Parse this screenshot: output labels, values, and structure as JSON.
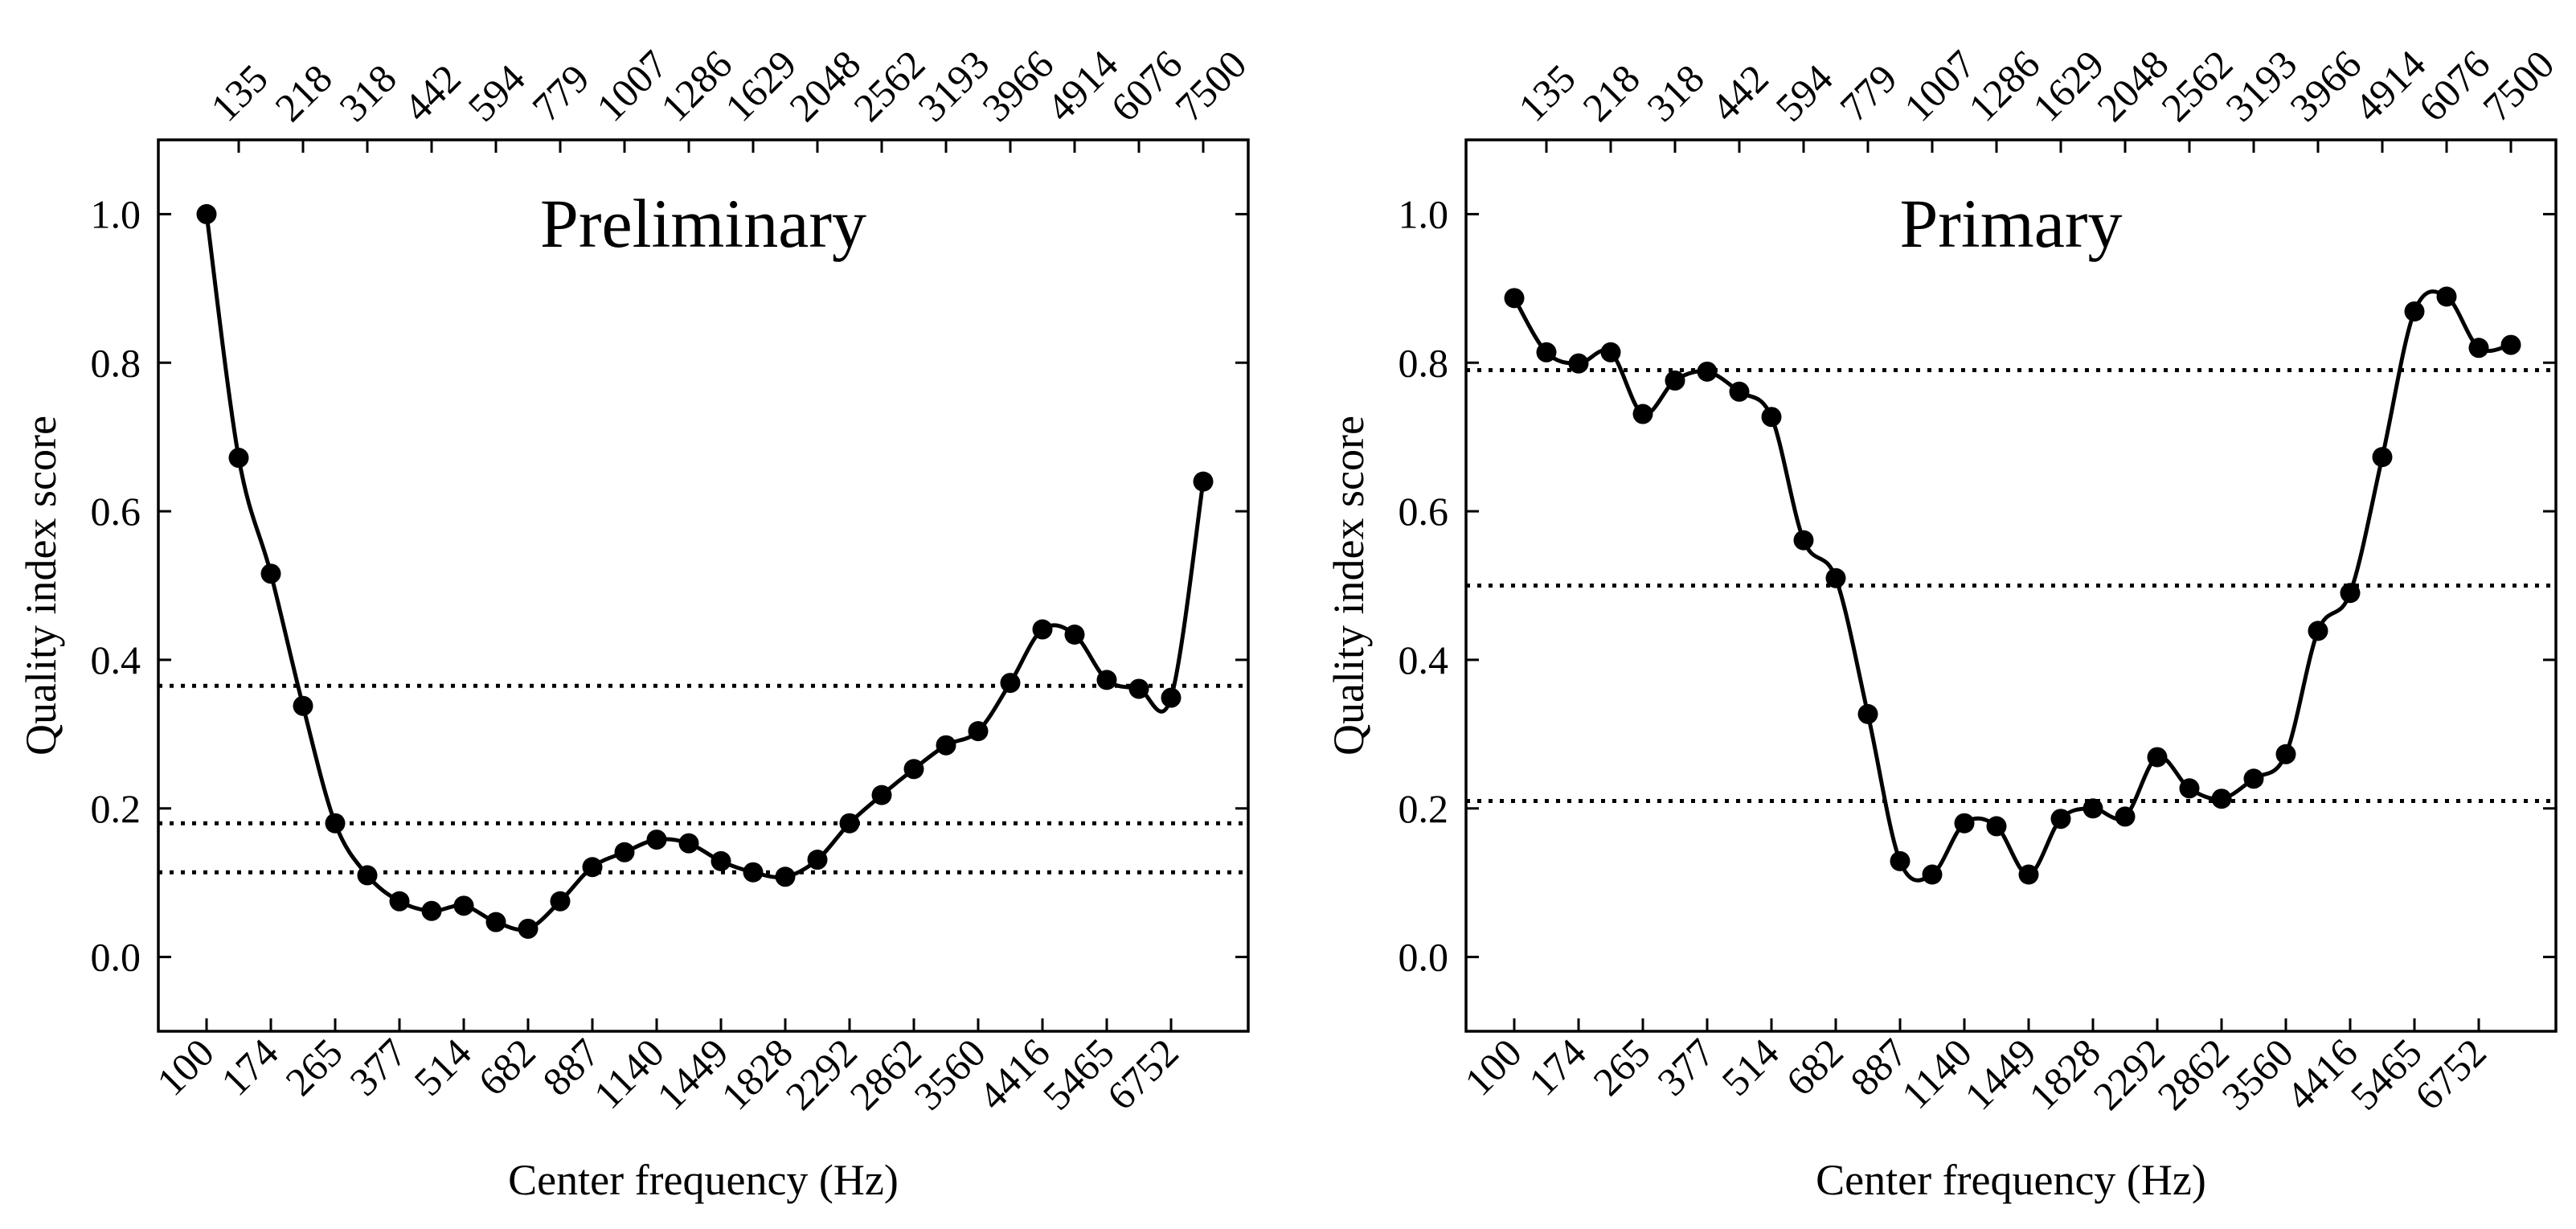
{
  "chart_data": [
    {
      "type": "line",
      "title": "Preliminary",
      "xlabel": "Center frequency (Hz)",
      "ylabel": "Quality index score",
      "ylim": [
        -0.1,
        1.1
      ],
      "yticks": [
        "0.0",
        "0.2",
        "0.4",
        "0.6",
        "0.8",
        "1.0"
      ],
      "yticks_values": [
        0.0,
        0.2,
        0.4,
        0.6,
        0.8,
        1.0
      ],
      "x_bottom_ticks": [
        "100",
        "174",
        "265",
        "377",
        "514",
        "682",
        "887",
        "1140",
        "1449",
        "1828",
        "2292",
        "2862",
        "3560",
        "4416",
        "5465",
        "6752"
      ],
      "x_top_ticks": [
        "135",
        "218",
        "318",
        "442",
        "594",
        "779",
        "1007",
        "1286",
        "1629",
        "2048",
        "2562",
        "3193",
        "3966",
        "4914",
        "6076",
        "7500"
      ],
      "x": [
        "100",
        "135",
        "174",
        "218",
        "265",
        "318",
        "377",
        "442",
        "514",
        "594",
        "682",
        "779",
        "887",
        "1007",
        "1140",
        "1286",
        "1449",
        "1629",
        "1828",
        "2048",
        "2292",
        "2562",
        "2862",
        "3193",
        "3560",
        "3966",
        "4416",
        "4914",
        "5465",
        "6076",
        "6752",
        "7500"
      ],
      "values": [
        1.0,
        0.672,
        0.516,
        0.338,
        0.18,
        0.11,
        0.075,
        0.062,
        0.069,
        0.047,
        0.038,
        0.075,
        0.121,
        0.141,
        0.158,
        0.153,
        0.129,
        0.114,
        0.108,
        0.131,
        0.18,
        0.218,
        0.253,
        0.285,
        0.304,
        0.369,
        0.441,
        0.434,
        0.373,
        0.361,
        0.349,
        0.64
      ],
      "hlines": [
        0.365,
        0.18,
        0.114
      ]
    },
    {
      "type": "line",
      "title": "Primary",
      "xlabel": "Center frequency (Hz)",
      "ylabel": "Quality index score",
      "ylim": [
        -0.1,
        1.1
      ],
      "yticks": [
        "0.0",
        "0.2",
        "0.4",
        "0.6",
        "0.8",
        "1.0"
      ],
      "yticks_values": [
        0.0,
        0.2,
        0.4,
        0.6,
        0.8,
        1.0
      ],
      "x_bottom_ticks": [
        "100",
        "174",
        "265",
        "377",
        "514",
        "682",
        "887",
        "1140",
        "1449",
        "1828",
        "2292",
        "2862",
        "3560",
        "4416",
        "5465",
        "6752"
      ],
      "x_top_ticks": [
        "135",
        "218",
        "318",
        "442",
        "594",
        "779",
        "1007",
        "1286",
        "1629",
        "2048",
        "2562",
        "3193",
        "3966",
        "4914",
        "6076",
        "7500"
      ],
      "x": [
        "100",
        "135",
        "174",
        "218",
        "265",
        "318",
        "377",
        "442",
        "514",
        "594",
        "682",
        "779",
        "887",
        "1007",
        "1140",
        "1286",
        "1449",
        "1629",
        "1828",
        "2048",
        "2292",
        "2562",
        "2862",
        "3193",
        "3560",
        "3966",
        "4416",
        "4914",
        "5465",
        "6076",
        "6752",
        "7500"
      ],
      "values": [
        0.887,
        0.814,
        0.799,
        0.814,
        0.731,
        0.776,
        0.788,
        0.761,
        0.727,
        0.561,
        0.51,
        0.327,
        0.129,
        0.111,
        0.18,
        0.176,
        0.111,
        0.186,
        0.2,
        0.189,
        0.269,
        0.227,
        0.213,
        0.24,
        0.273,
        0.439,
        0.49,
        0.673,
        0.869,
        0.889,
        0.82,
        0.824
      ],
      "hlines": [
        0.79,
        0.5,
        0.21
      ]
    }
  ]
}
